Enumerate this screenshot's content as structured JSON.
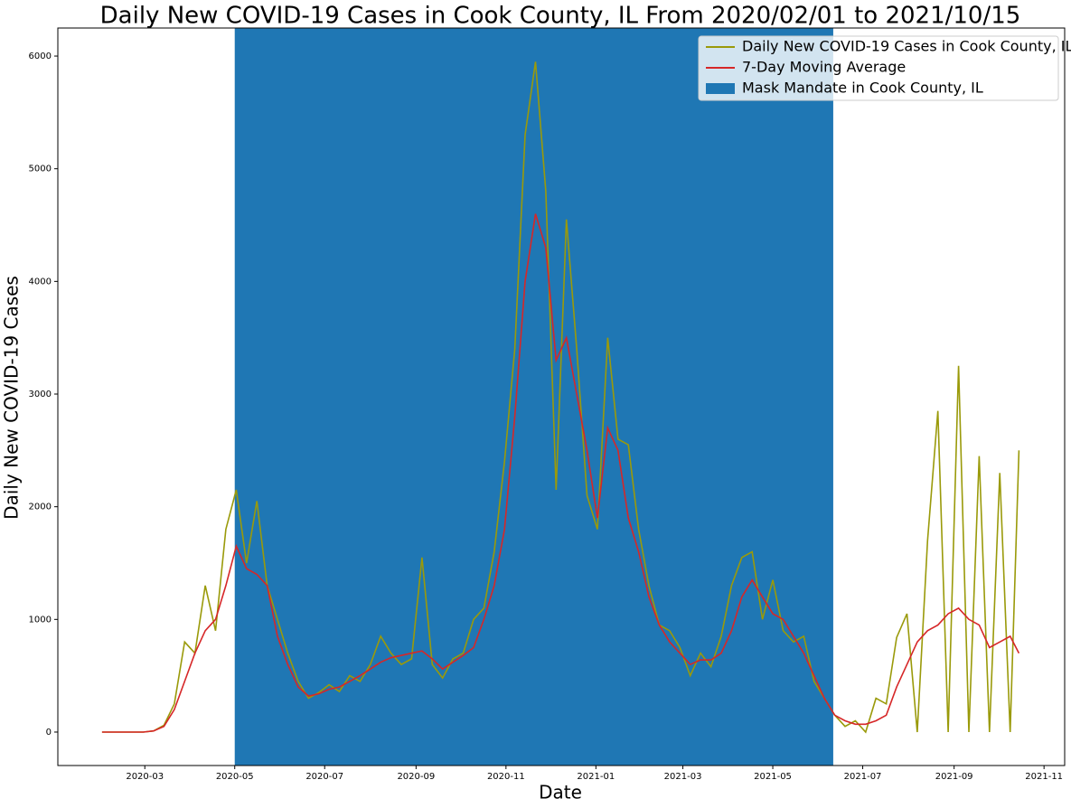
{
  "chart_data": {
    "type": "line",
    "title": "Daily New COVID-19 Cases in Cook County, IL From 2020/02/01 to 2021/10/15",
    "xlabel": "Date",
    "ylabel": "Daily New COVID-19 Cases",
    "x": [
      "2020-02-01",
      "2020-02-08",
      "2020-02-15",
      "2020-02-22",
      "2020-02-29",
      "2020-03-07",
      "2020-03-14",
      "2020-03-21",
      "2020-03-28",
      "2020-04-04",
      "2020-04-11",
      "2020-04-18",
      "2020-04-25",
      "2020-05-02",
      "2020-05-09",
      "2020-05-16",
      "2020-05-23",
      "2020-05-30",
      "2020-06-06",
      "2020-06-13",
      "2020-06-20",
      "2020-06-27",
      "2020-07-04",
      "2020-07-11",
      "2020-07-18",
      "2020-07-25",
      "2020-08-01",
      "2020-08-08",
      "2020-08-15",
      "2020-08-22",
      "2020-08-29",
      "2020-09-05",
      "2020-09-12",
      "2020-09-19",
      "2020-09-26",
      "2020-10-03",
      "2020-10-10",
      "2020-10-17",
      "2020-10-24",
      "2020-10-31",
      "2020-11-07",
      "2020-11-14",
      "2020-11-21",
      "2020-11-28",
      "2020-12-05",
      "2020-12-12",
      "2020-12-19",
      "2020-12-26",
      "2021-01-02",
      "2021-01-09",
      "2021-01-16",
      "2021-01-23",
      "2021-01-30",
      "2021-02-06",
      "2021-02-13",
      "2021-02-20",
      "2021-02-27",
      "2021-03-06",
      "2021-03-13",
      "2021-03-20",
      "2021-03-27",
      "2021-04-03",
      "2021-04-10",
      "2021-04-17",
      "2021-04-24",
      "2021-05-01",
      "2021-05-08",
      "2021-05-15",
      "2021-05-22",
      "2021-05-29",
      "2021-06-05",
      "2021-06-12",
      "2021-06-19",
      "2021-06-26",
      "2021-07-03",
      "2021-07-10",
      "2021-07-17",
      "2021-07-24",
      "2021-07-31",
      "2021-08-07",
      "2021-08-14",
      "2021-08-21",
      "2021-08-28",
      "2021-09-04",
      "2021-09-11",
      "2021-09-18",
      "2021-09-25",
      "2021-10-02",
      "2021-10-09",
      "2021-10-15"
    ],
    "series": [
      {
        "name": "Daily New COVID-19 Cases in Cook County, IL",
        "color": "#9a9a0a",
        "values": [
          0,
          0,
          0,
          0,
          0,
          10,
          60,
          250,
          800,
          700,
          1300,
          900,
          1800,
          2150,
          1500,
          2050,
          1300,
          1000,
          700,
          450,
          300,
          350,
          420,
          360,
          500,
          450,
          600,
          850,
          700,
          600,
          650,
          1550,
          600,
          480,
          650,
          700,
          1000,
          1100,
          1600,
          2400,
          3400,
          5300,
          5950,
          4800,
          2150,
          4550,
          3400,
          2100,
          1800,
          3500,
          2600,
          2550,
          1800,
          1300,
          950,
          900,
          750,
          500,
          700,
          580,
          850,
          1300,
          1550,
          1600,
          1000,
          1350,
          900,
          800,
          850,
          450,
          300,
          150,
          50,
          100,
          0,
          300,
          250,
          840,
          1050,
          0,
          1700,
          2850,
          0,
          3250,
          0,
          2450,
          0,
          2300,
          0,
          2500
        ]
      },
      {
        "name": "7-Day Moving Average",
        "color": "#d62728",
        "values": [
          0,
          0,
          0,
          0,
          0,
          10,
          50,
          200,
          450,
          700,
          900,
          1000,
          1300,
          1650,
          1450,
          1400,
          1300,
          850,
          600,
          400,
          320,
          340,
          380,
          400,
          450,
          500,
          560,
          620,
          660,
          680,
          700,
          720,
          650,
          560,
          620,
          680,
          750,
          1000,
          1300,
          1800,
          2800,
          4000,
          4600,
          4300,
          3300,
          3500,
          3000,
          2500,
          1900,
          2700,
          2500,
          1900,
          1600,
          1200,
          950,
          800,
          700,
          600,
          640,
          640,
          700,
          900,
          1200,
          1350,
          1200,
          1050,
          1000,
          850,
          700,
          500,
          300,
          150,
          100,
          70,
          70,
          100,
          150,
          400,
          600,
          800,
          900,
          950,
          1050,
          1100,
          1000,
          950,
          750,
          800,
          850,
          700
        ]
      }
    ],
    "span": {
      "name": "Mask Mandate in Cook County, IL",
      "start": "2020-05-01",
      "end": "2021-06-11",
      "color": "#1f77b4"
    },
    "xlim": [
      "2020-01-02",
      "2021-11-15"
    ],
    "xticks": [
      {
        "value": "2020-03-01",
        "label": "2020-03"
      },
      {
        "value": "2020-05-01",
        "label": "2020-05"
      },
      {
        "value": "2020-07-01",
        "label": "2020-07"
      },
      {
        "value": "2020-09-01",
        "label": "2020-09"
      },
      {
        "value": "2020-11-01",
        "label": "2020-11"
      },
      {
        "value": "2021-01-01",
        "label": "2021-01"
      },
      {
        "value": "2021-03-01",
        "label": "2021-03"
      },
      {
        "value": "2021-05-01",
        "label": "2021-05"
      },
      {
        "value": "2021-07-01",
        "label": "2021-07"
      },
      {
        "value": "2021-09-01",
        "label": "2021-09"
      },
      {
        "value": "2021-11-01",
        "label": "2021-11"
      }
    ],
    "ylim": [
      -297,
      6249
    ],
    "yticks": [
      0,
      1000,
      2000,
      3000,
      4000,
      5000,
      6000
    ],
    "legend": "upper right"
  }
}
